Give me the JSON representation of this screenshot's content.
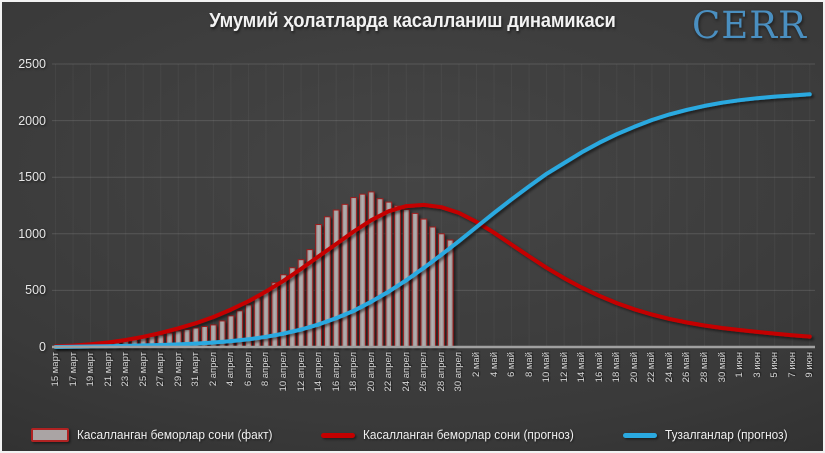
{
  "header": {
    "title": "Умумий ҳолатларда касалланиш динамикаси",
    "logo": "CERR"
  },
  "colors": {
    "background_center": "#454545",
    "background_edge": "#1f1f1f",
    "title_text": "#f2f2f2",
    "logo_blue": "#4a8fc0",
    "bar_fill": "#a8a2a2",
    "bar_border": "#9e1f1f",
    "forecast_line_red": "#c40000",
    "recovered_line_blue": "#2aa9e0",
    "axis_line": "#a0a0a0",
    "tick_text": "#d8d8d8"
  },
  "legend": [
    {
      "type": "bar",
      "label": "Касалланган беморлар сони (факт)"
    },
    {
      "type": "redline",
      "label": "Касалланган беморлар сони (прогноз)"
    },
    {
      "type": "blueline",
      "label": "Тузалганлар (прогноз)"
    }
  ],
  "chart_data": {
    "type": "combo-bar-line",
    "title": "Умумий ҳолатларда касалланиш динамикаси",
    "xlabel": "",
    "ylabel": "",
    "ylim": [
      0,
      2500
    ],
    "yticks": [
      0,
      500,
      1000,
      1500,
      2000,
      2500
    ],
    "grid": "horizontal-faint",
    "legend_position": "bottom-center",
    "x_total_days": 87,
    "x_tick_step_days": 2,
    "x_tick_labels": [
      "15 март",
      "17 март",
      "19 март",
      "21 март",
      "23 март",
      "25 март",
      "27 март",
      "29 март",
      "31 март",
      "2 апрел",
      "4 апрел",
      "6 апрел",
      "8 апрел",
      "10 апрел",
      "12 апрел",
      "14 апрел",
      "16 апрел",
      "18 апрел",
      "20 апрел",
      "22 апрел",
      "24 апрел",
      "26 апрел",
      "28 апрел",
      "30 апрел",
      "2 май",
      "4 май",
      "6 май",
      "8 май",
      "10 май",
      "12 май",
      "14 май",
      "16 май",
      "18 май",
      "20 май",
      "22 май",
      "24 май",
      "26 май",
      "28 май",
      "30 май",
      "1 июн",
      "3 июн",
      "5 июн",
      "7 июн",
      "9 июн"
    ],
    "series": [
      {
        "name": "Касалланган беморлар сони (факт)",
        "type": "bar",
        "start_day_index": 0,
        "day_step": 1,
        "dates": [
          "15 март",
          "16 март",
          "17 март",
          "18 март",
          "19 март",
          "20 март",
          "21 март",
          "22 март",
          "23 март",
          "24 март",
          "25 март",
          "26 март",
          "27 март",
          "28 март",
          "29 март",
          "30 март",
          "31 март",
          "1 апрел",
          "2 апрел",
          "3 апрел",
          "4 апрел",
          "5 апрел",
          "6 апрел",
          "7 апрел",
          "8 апрел",
          "9 апрел",
          "10 апрел",
          "11 апрел",
          "12 апрел",
          "13 апрел",
          "14 апрел",
          "15 апрел",
          "16 апрел",
          "17 апрел",
          "18 апрел",
          "19 апрел",
          "20 апрел",
          "21 апрел",
          "22 апрел",
          "23 апрел",
          "24 апрел",
          "25 апрел",
          "26 апрел",
          "27 апрел",
          "28 апрел",
          "29 апрел"
        ],
        "values": [
          1,
          5,
          10,
          15,
          23,
          33,
          43,
          50,
          60,
          70,
          83,
          95,
          106,
          124,
          142,
          155,
          168,
          181,
          195,
          230,
          275,
          320,
          372,
          434,
          496,
          567,
          638,
          700,
          771,
          860,
          1082,
          1150,
          1210,
          1260,
          1320,
          1350,
          1370,
          1310,
          1280,
          1245,
          1215,
          1180,
          1130,
          1060,
          1000,
          945
        ]
      },
      {
        "name": "Касалланган беморлар сони (прогноз)",
        "type": "line",
        "start_day_index": 0,
        "day_step": 2,
        "values": [
          5,
          12,
          24,
          40,
          62,
          90,
          125,
          165,
          210,
          265,
          330,
          405,
          490,
          585,
          690,
          800,
          910,
          1020,
          1120,
          1200,
          1245,
          1255,
          1235,
          1185,
          1105,
          1010,
          905,
          800,
          700,
          608,
          525,
          452,
          388,
          333,
          287,
          248,
          216,
          190,
          168,
          150,
          133,
          118,
          104,
          92
        ]
      },
      {
        "name": "Тузалганлар (прогноз)",
        "type": "line",
        "start_day_index": 0,
        "day_step": 2,
        "values": [
          0,
          2,
          4,
          7,
          10,
          14,
          18,
          23,
          30,
          40,
          52,
          68,
          90,
          118,
          155,
          200,
          255,
          320,
          400,
          490,
          590,
          700,
          815,
          935,
          1060,
          1185,
          1305,
          1420,
          1530,
          1625,
          1720,
          1805,
          1880,
          1945,
          2005,
          2055,
          2095,
          2130,
          2158,
          2180,
          2198,
          2212,
          2222,
          2232
        ]
      }
    ]
  }
}
